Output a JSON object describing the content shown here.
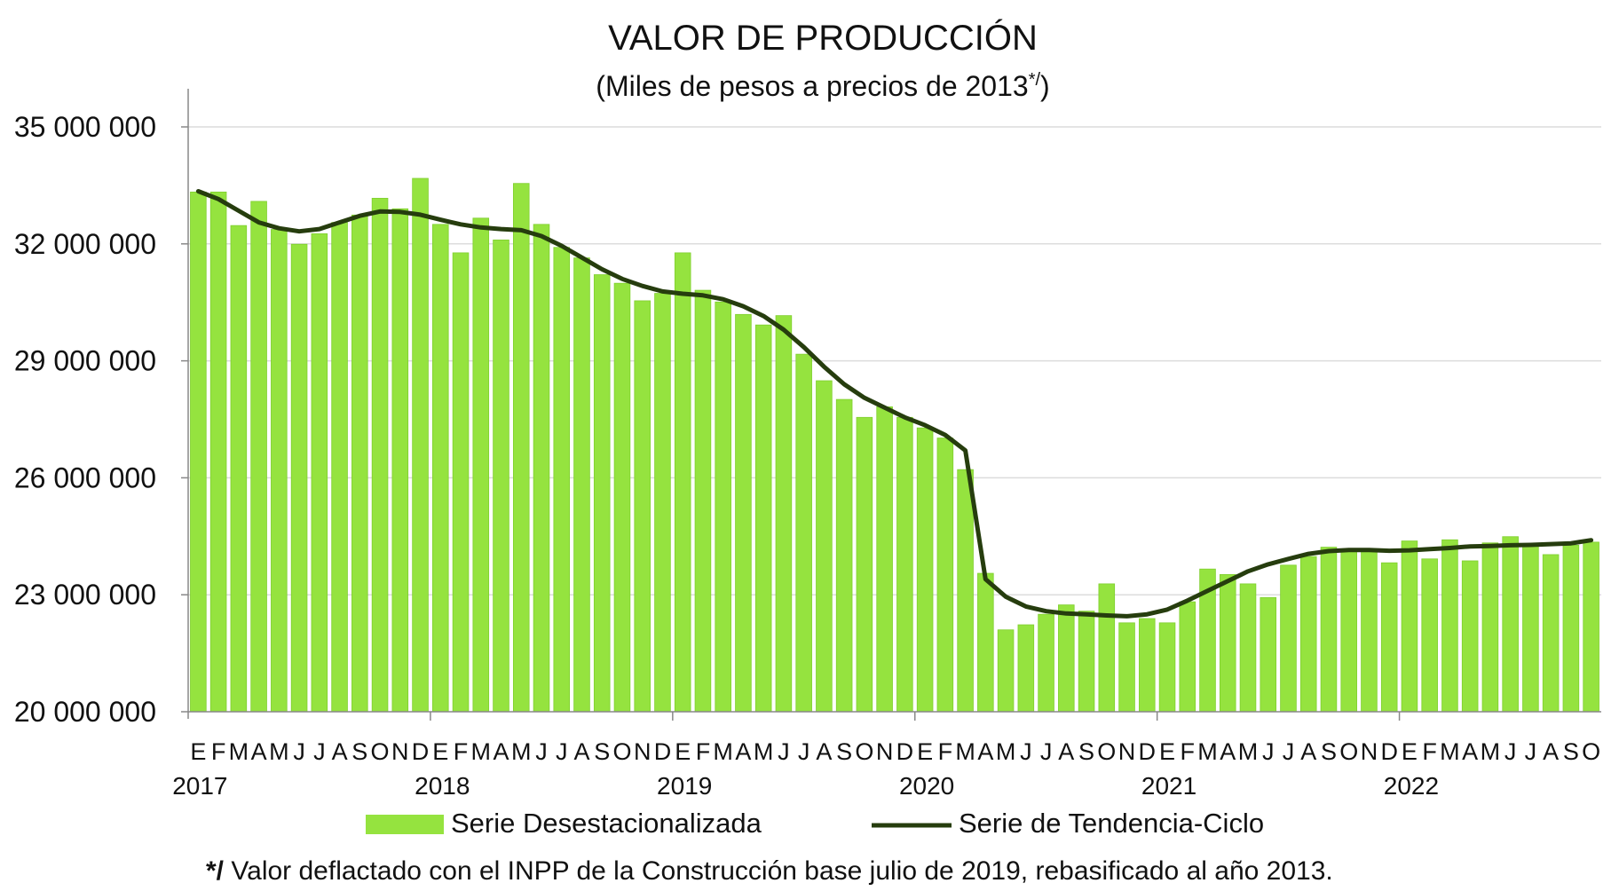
{
  "chart_data": {
    "type": "bar",
    "title": "VALOR DE PRODUCCIÓN",
    "subtitle": "(Miles de pesos a precios de 2013",
    "subtitle_sup": "*/",
    "subtitle_end": ")",
    "xlabel": "",
    "ylabel": "",
    "ylim": [
      20000000,
      35000000
    ],
    "yticks": [
      20000000,
      23000000,
      26000000,
      29000000,
      32000000,
      35000000
    ],
    "ytick_labels": [
      "20 000 000",
      "23 000 000",
      "26 000 000",
      "29 000 000",
      "32 000 000",
      "35 000 000"
    ],
    "grid": true,
    "legend_position": "bottom",
    "years": [
      "2017",
      "2018",
      "2019",
      "2020",
      "2021",
      "2022"
    ],
    "month_labels": [
      "E",
      "F",
      "M",
      "A",
      "M",
      "J",
      "J",
      "A",
      "S",
      "O",
      "N",
      "D"
    ],
    "bar_color": "#95E33F",
    "line_color": "#263D0E",
    "series": [
      {
        "name": "Serie Desestacionalizada",
        "type": "bar",
        "values": [
          33330000,
          33330000,
          32470000,
          33090000,
          32370000,
          31990000,
          32260000,
          32550000,
          32740000,
          33170000,
          32900000,
          33680000,
          32500000,
          31770000,
          32660000,
          32100000,
          33550000,
          32500000,
          31910000,
          31640000,
          31210000,
          30990000,
          30540000,
          30730000,
          31770000,
          30810000,
          30510000,
          30190000,
          29920000,
          30160000,
          29170000,
          28490000,
          28010000,
          27550000,
          27820000,
          27550000,
          27280000,
          27020000,
          26210000,
          23550000,
          22100000,
          22230000,
          22500000,
          22740000,
          22580000,
          23280000,
          22280000,
          22390000,
          22280000,
          22820000,
          23660000,
          23520000,
          23280000,
          22930000,
          23760000,
          23980000,
          24220000,
          24140000,
          24170000,
          23820000,
          24380000,
          23920000,
          24410000,
          23870000,
          24330000,
          24490000,
          24300000,
          24030000,
          24270000,
          24350000
        ]
      },
      {
        "name": "Serie de Tendencia-Ciclo",
        "type": "line",
        "values": [
          33350000,
          33150000,
          32850000,
          32550000,
          32400000,
          32320000,
          32380000,
          32550000,
          32720000,
          32830000,
          32820000,
          32750000,
          32620000,
          32500000,
          32420000,
          32380000,
          32350000,
          32200000,
          31950000,
          31650000,
          31350000,
          31100000,
          30920000,
          30780000,
          30720000,
          30680000,
          30580000,
          30400000,
          30150000,
          29800000,
          29350000,
          28850000,
          28400000,
          28050000,
          27800000,
          27550000,
          27350000,
          27100000,
          26700000,
          23400000,
          22950000,
          22700000,
          22580000,
          22520000,
          22500000,
          22470000,
          22450000,
          22500000,
          22620000,
          22850000,
          23100000,
          23350000,
          23600000,
          23780000,
          23920000,
          24050000,
          24120000,
          24150000,
          24150000,
          24130000,
          24140000,
          24170000,
          24200000,
          24240000,
          24250000,
          24270000,
          24280000,
          24300000,
          24320000,
          24400000
        ]
      }
    ],
    "footnote_mark": "*/",
    "footnote": " Valor deflactado con el INPP de la Construcción base julio de 2019, rebasificado al año 2013."
  }
}
